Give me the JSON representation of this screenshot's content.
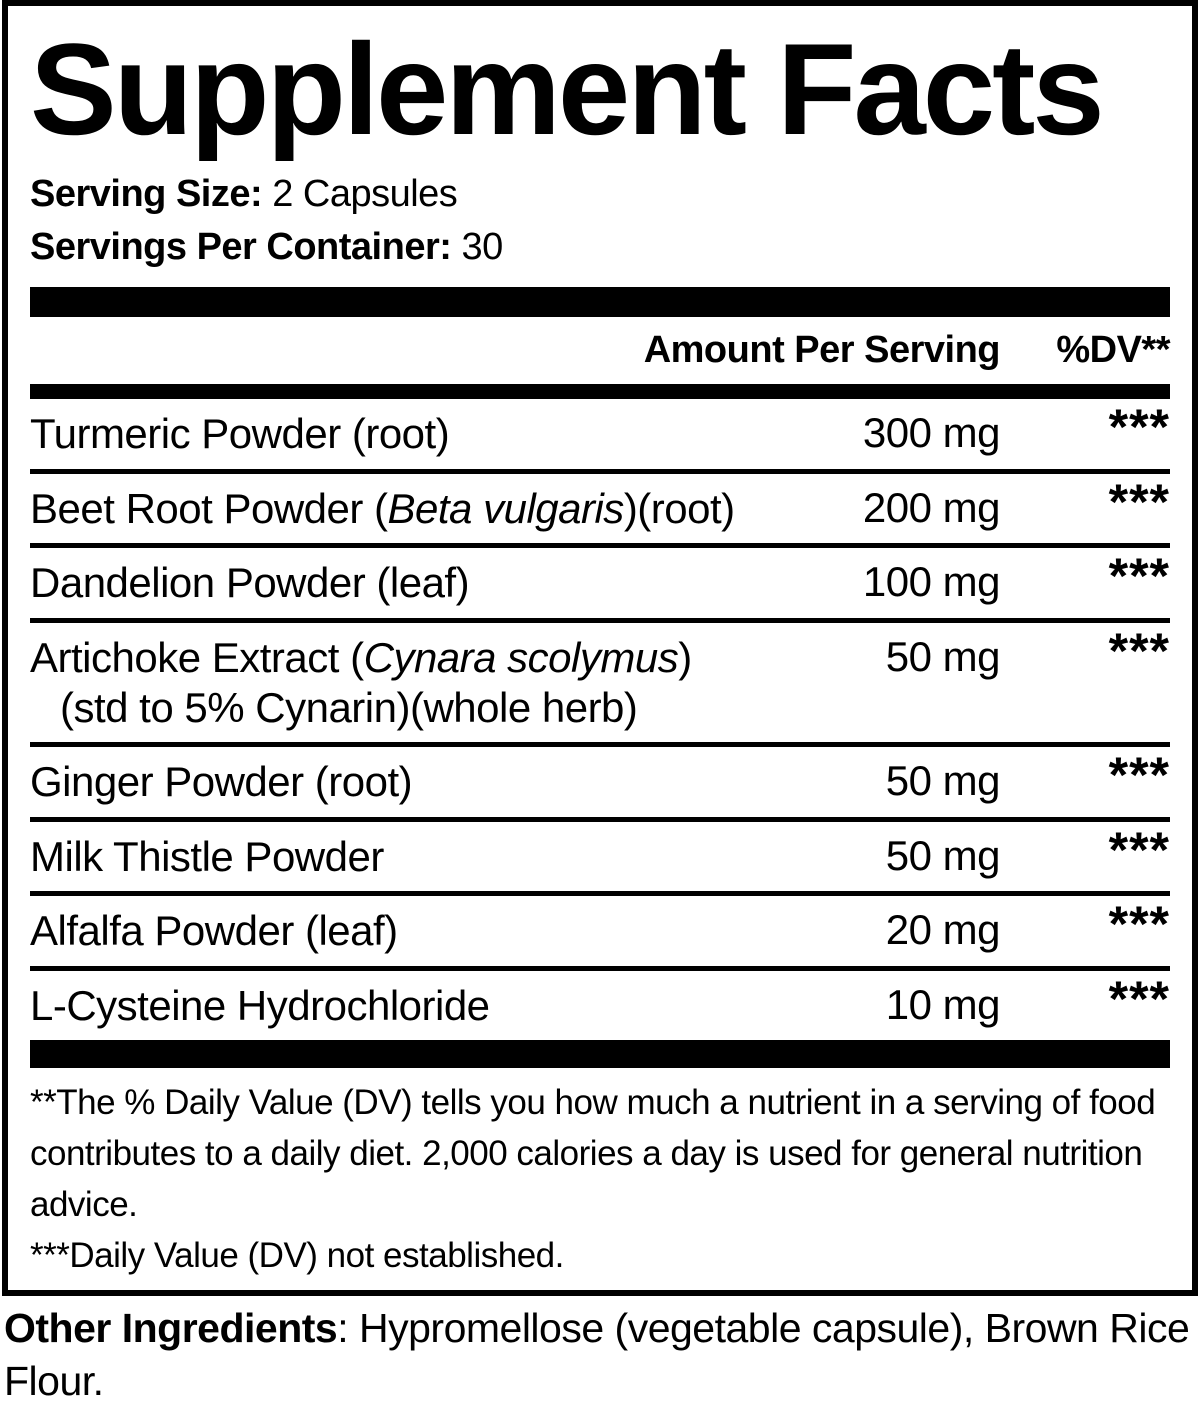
{
  "label": {
    "title": "Supplement Facts",
    "serving_size_label": "Serving Size:",
    "serving_size_value": " 2 Capsules",
    "servings_per_container_label": "Servings Per Container:",
    "servings_per_container_value": " 30",
    "header": {
      "amount_label": "Amount Per Serving",
      "dv_label": "%DV**"
    },
    "rows": [
      {
        "prefix": "Turmeric Powder (root)",
        "italic": "",
        "suffix": "",
        "line2": "",
        "amount": "300 mg",
        "dv": "***"
      },
      {
        "prefix": "Beet Root Powder (",
        "italic": "Beta vulgaris",
        "suffix": ")(root)",
        "line2": "",
        "amount": "200 mg",
        "dv": "***"
      },
      {
        "prefix": "Dandelion Powder (leaf)",
        "italic": "",
        "suffix": "",
        "line2": "",
        "amount": "100 mg",
        "dv": "***"
      },
      {
        "prefix": "Artichoke Extract (",
        "italic": "Cynara scolymus",
        "suffix": ")",
        "line2": "(std to 5% Cynarin)(whole herb)",
        "amount": "50 mg",
        "dv": "***"
      },
      {
        "prefix": "Ginger Powder (root)",
        "italic": "",
        "suffix": "",
        "line2": "",
        "amount": "50 mg",
        "dv": "***"
      },
      {
        "prefix": "Milk Thistle Powder",
        "italic": "",
        "suffix": "",
        "line2": "",
        "amount": "50 mg",
        "dv": "***"
      },
      {
        "prefix": "Alfalfa Powder (leaf)",
        "italic": "",
        "suffix": "",
        "line2": "",
        "amount": "20 mg",
        "dv": "***"
      },
      {
        "prefix": "L-Cysteine Hydrochloride",
        "italic": "",
        "suffix": "",
        "line2": "",
        "amount": "10 mg",
        "dv": "***"
      }
    ],
    "footnotes": {
      "daily_value_note": "**The % Daily Value (DV) tells you how much a nutrient in a serving of food contributes to a daily diet. 2,000 calories a day is used for general nutrition advice.",
      "not_established_note": "***Daily Value (DV) not established."
    },
    "other_ingredients_label": "Other Ingredients",
    "other_ingredients_value": ": Hypromellose (vegetable capsule), Brown Rice Flour."
  },
  "colors": {
    "text": "#000000",
    "background": "#ffffff"
  }
}
